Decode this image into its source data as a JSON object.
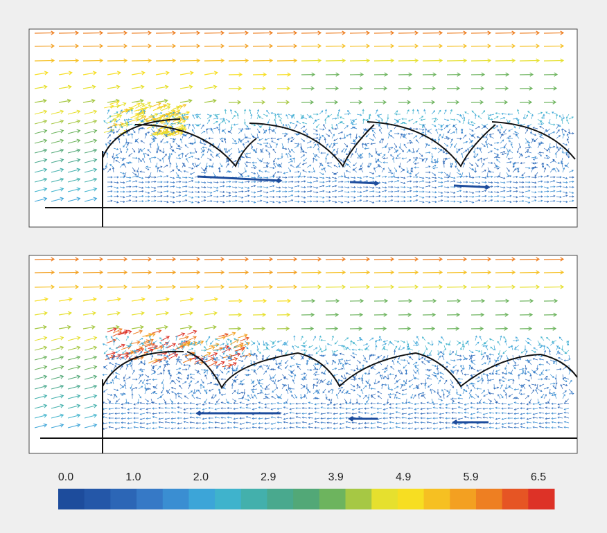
{
  "colorbar": {
    "labels": [
      "0.0",
      "1.0",
      "2.0",
      "2.9",
      "3.9",
      "4.9",
      "5.9",
      "6.5"
    ],
    "colors": [
      "#1d4c9c",
      "#2457a8",
      "#2c66b6",
      "#3679c6",
      "#3a8ed2",
      "#3ca5d8",
      "#3fb3cc",
      "#43b0ac",
      "#49a98e",
      "#52a877",
      "#6db45e",
      "#a6c844",
      "#e6e02e",
      "#f7de22",
      "#f6c022",
      "#f3a021",
      "#ee7f22",
      "#e65524",
      "#dd3227"
    ]
  }
}
